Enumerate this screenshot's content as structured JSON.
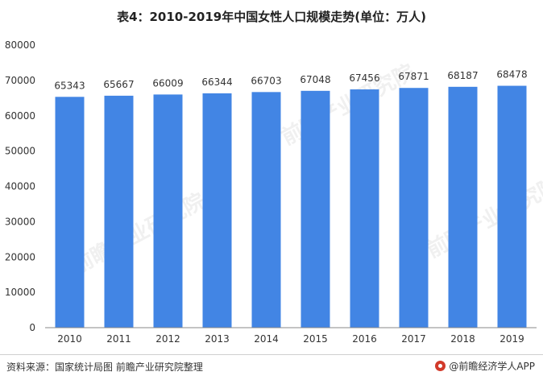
{
  "title": "表4：2010-2019年中国女性人口规模走势(单位：万人)",
  "footer": {
    "source": "资料来源：国家统计局图 前瞻产业研究院整理",
    "brand": "@前瞻经济学人APP"
  },
  "watermark": "前瞻产业研究院",
  "colors": {
    "bar": "#4285e4",
    "axis": "#888888",
    "text": "#333333"
  },
  "chart_data": {
    "type": "bar",
    "categories": [
      "2010",
      "2011",
      "2012",
      "2013",
      "2014",
      "2015",
      "2016",
      "2017",
      "2018",
      "2019"
    ],
    "values": [
      65343,
      65667,
      66009,
      66344,
      66703,
      67048,
      67456,
      67871,
      68187,
      68478
    ],
    "title": "表4：2010-2019年中国女性人口规模走势(单位：万人)",
    "xlabel": "",
    "ylabel": "",
    "ylim": [
      0,
      80000
    ],
    "yticks": [
      0,
      10000,
      20000,
      30000,
      40000,
      50000,
      60000,
      70000,
      80000
    ],
    "grid": false,
    "data_labels": true
  }
}
